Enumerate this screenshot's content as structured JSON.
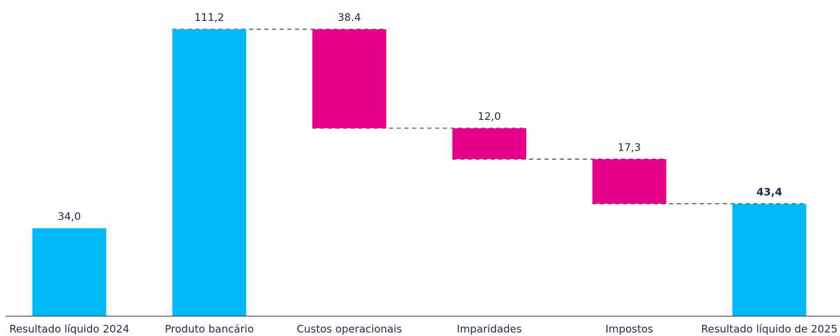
{
  "chart_data": {
    "type": "waterfall",
    "categories": [
      "Resultado líquido 2024",
      "Produto bancário",
      "Custos operacionais",
      "Imparidades",
      "Impostos",
      "Resultado líquido de 2025"
    ],
    "values": [
      34.0,
      111.2,
      -38.4,
      -12.0,
      -17.3,
      43.4
    ],
    "labels": [
      "34,0",
      "111,2",
      "38.4",
      "12,0",
      "17,3",
      "43,4"
    ],
    "kinds": [
      "total",
      "total",
      "decrease",
      "decrease",
      "decrease",
      "total"
    ],
    "bold_labels": [
      false,
      false,
      false,
      false,
      false,
      true
    ],
    "ylim": [
      0,
      120
    ],
    "connectors": "dashed",
    "grid": false,
    "colors": {
      "total": "#00b8f5",
      "decrease": "#e6008a",
      "connector": "#333333",
      "axis": "#333333",
      "text": "#1f2a44"
    }
  }
}
